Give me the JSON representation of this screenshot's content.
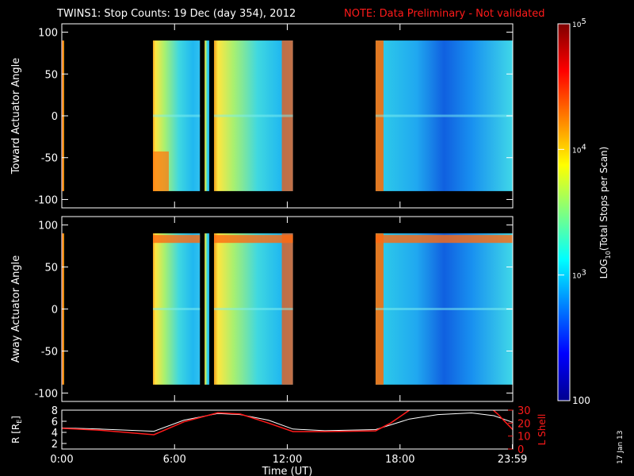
{
  "title": "TWINS1: Stop Counts: 19 Dec (day 354), 2012",
  "note": "NOTE: Data Preliminary - Not validated",
  "stamp": "17 Jan 13",
  "colors": {
    "note": "#ff1a1a",
    "rline": "#ffffff",
    "lshell": "#ff1a1a"
  },
  "chart_data": [
    {
      "type": "heatmap",
      "ylabel": "Toward Actuator Angle",
      "ylim": [
        -110,
        110
      ],
      "yticks": [
        "100",
        "50",
        "0",
        "-50",
        "-100"
      ],
      "ytick_values": [
        100,
        50,
        0,
        -50,
        -100
      ],
      "xlim": [
        0,
        24
      ],
      "data_blocks_hours": [
        [
          0.0,
          0.12
        ],
        [
          4.85,
          7.35
        ],
        [
          7.6,
          7.85
        ],
        [
          8.1,
          12.3
        ],
        [
          16.7,
          24.0
        ]
      ],
      "data_gaps_hours": [
        [
          7.35,
          7.6
        ],
        [
          7.85,
          8.1
        ]
      ],
      "angle_range": [
        -90,
        90
      ]
    },
    {
      "type": "heatmap",
      "ylabel": "Away Actuator Angle",
      "ylim": [
        -110,
        110
      ],
      "yticks": [
        "100",
        "50",
        "0",
        "-50",
        "-100"
      ],
      "ytick_values": [
        100,
        50,
        0,
        -50,
        -100
      ],
      "xlim": [
        0,
        24
      ],
      "data_blocks_hours": [
        [
          0.0,
          0.12
        ],
        [
          4.85,
          7.35
        ],
        [
          7.6,
          7.85
        ],
        [
          8.1,
          12.3
        ],
        [
          16.7,
          24.0
        ]
      ],
      "data_gaps_hours": [
        [
          7.35,
          7.6
        ],
        [
          7.85,
          8.1
        ]
      ],
      "angle_range": [
        -90,
        90
      ]
    },
    {
      "type": "line",
      "ylabel_left": "R [R",
      "ylabel_left_sub": "E",
      "ylabel_left_tail": "]",
      "ylabel_right": "L Shell",
      "xlabel": "Time (UT)",
      "xlim": [
        0,
        24
      ],
      "xticks": [
        "0:00",
        "6:00",
        "12:00",
        "18:00",
        "23:59"
      ],
      "xtick_values": [
        0,
        6,
        12,
        18,
        23.98
      ],
      "ylim_left": [
        1,
        8
      ],
      "yticks_left": [
        "8",
        "6",
        "4",
        "2"
      ],
      "ytick_left_values": [
        8,
        6,
        4,
        2
      ],
      "ylim_right": [
        0,
        30
      ],
      "yticks_right": [
        "30",
        "20",
        "10",
        "0"
      ],
      "ytick_right_values": [
        30,
        20,
        10,
        0
      ],
      "series": [
        {
          "axis": "left",
          "x": [
            0,
            2,
            4.9,
            6.5,
            8.3,
            9.5,
            11,
            12.3,
            14,
            16.7,
            18.5,
            20,
            21.8,
            23,
            24
          ],
          "y": [
            4.8,
            4.6,
            4.2,
            6.2,
            7.4,
            7.2,
            6.2,
            4.6,
            4.3,
            4.5,
            6.4,
            7.2,
            7.5,
            7.0,
            5.8
          ]
        },
        {
          "axis": "right",
          "x": [
            0,
            2,
            4.9,
            6.5,
            8.3,
            9.5,
            11,
            12.3,
            14,
            16.7,
            17.5,
            18.5,
            19.2,
            22.5,
            23.2,
            24
          ],
          "y": [
            16,
            14.5,
            11,
            21,
            28,
            27,
            20,
            13.5,
            13.5,
            14,
            20,
            30,
            36,
            36,
            27,
            15
          ]
        }
      ]
    }
  ],
  "colorbar": {
    "label_prefix": "LOG",
    "label_sub": "10",
    "label_suffix": "(Total Stops per Scan)",
    "ticks": [
      {
        "base": "10",
        "exp": "5"
      },
      {
        "base": "10",
        "exp": "4"
      },
      {
        "base": "10",
        "exp": "3"
      }
    ],
    "bottom_label": "100",
    "tick_values": [
      100000,
      10000,
      1000,
      100
    ]
  }
}
